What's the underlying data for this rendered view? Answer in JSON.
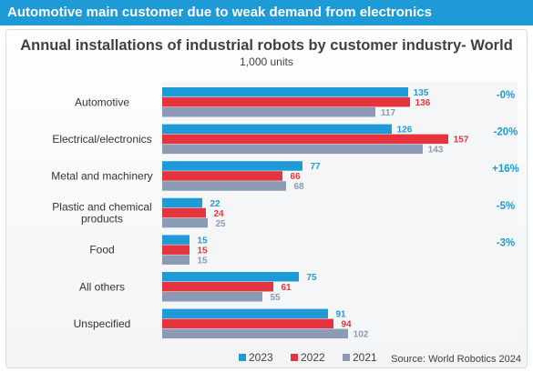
{
  "header": {
    "title": "Automotive main customer due to weak demand from electronics"
  },
  "chart_data": {
    "type": "bar",
    "orientation": "horizontal",
    "title": "Annual installations of industrial robots by customer industry- World",
    "subtitle": "1,000 units",
    "categories": [
      "Automotive",
      "Electrical/electronics",
      "Metal and machinery",
      "Plastic and chemical products",
      "Food",
      "All others",
      "Unspecified"
    ],
    "category_lines": [
      [
        "Automotive"
      ],
      [
        "Electrical/electronics"
      ],
      [
        "Metal and machinery"
      ],
      [
        "Plastic and chemical",
        "products"
      ],
      [
        "Food"
      ],
      [
        "All others"
      ],
      [
        "Unspecified"
      ]
    ],
    "series": [
      {
        "name": "2023",
        "color": "#1e9bd7",
        "values": [
          135,
          126,
          77,
          22,
          15,
          75,
          91
        ]
      },
      {
        "name": "2022",
        "color": "#e5343d",
        "values": [
          136,
          157,
          66,
          24,
          15,
          61,
          94
        ]
      },
      {
        "name": "2021",
        "color": "#8b9bb6",
        "values": [
          117,
          143,
          68,
          25,
          15,
          55,
          102
        ]
      }
    ],
    "changes": [
      "-0%",
      "-20%",
      "+16%",
      "-5%",
      "-3%",
      "",
      ""
    ],
    "xlim": [
      0,
      180
    ],
    "grid": false,
    "legend": "bottom"
  },
  "source": "Source: World Robotics 2024"
}
